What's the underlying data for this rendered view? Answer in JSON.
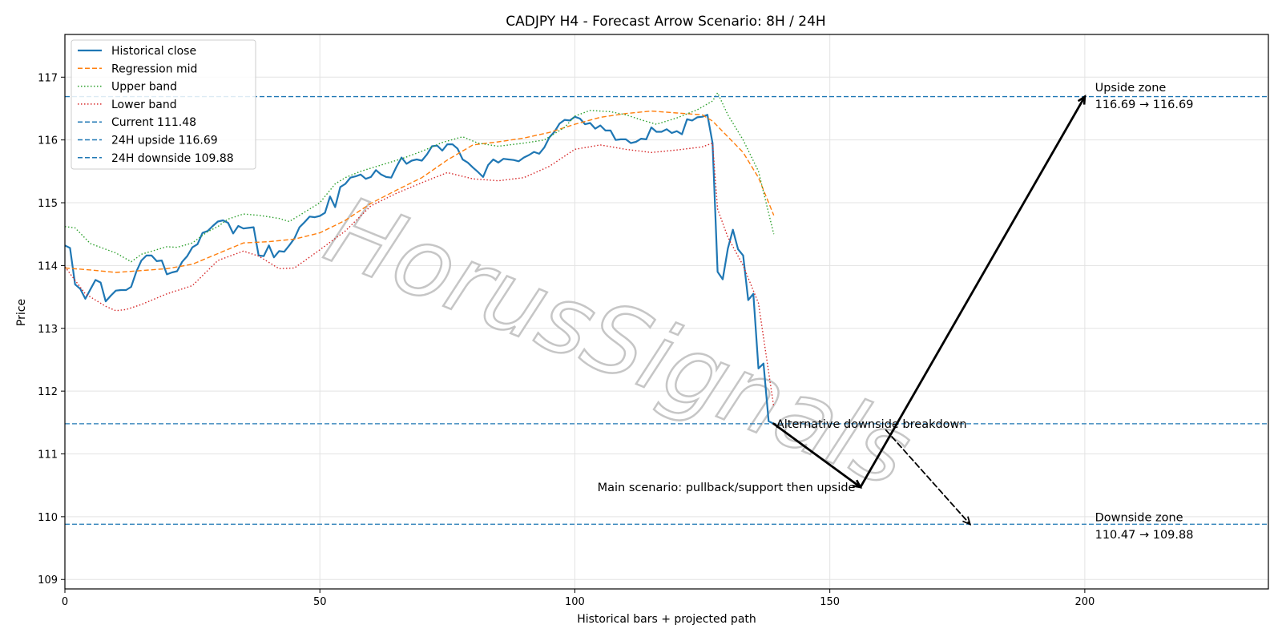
{
  "chart_data": {
    "type": "line",
    "title": "CADJPY H4 - Forecast Arrow Scenario: 8H / 24H",
    "xlabel": "Historical bars + projected path",
    "ylabel": "Price",
    "xlim": [
      0,
      236
    ],
    "ylim": [
      108.85,
      117.68
    ],
    "x_ticks": [
      0,
      50,
      100,
      150,
      200
    ],
    "y_ticks": [
      109,
      110,
      111,
      112,
      113,
      114,
      115,
      116,
      117
    ],
    "grid": true,
    "legend_position": "top-left",
    "watermark": "HorusSignals",
    "series": [
      {
        "name": "Historical close",
        "style": "solid",
        "color": "#1f77b4",
        "x": [
          0,
          1,
          2,
          3,
          4,
          5,
          6,
          7,
          8,
          9,
          10,
          11,
          12,
          13,
          14,
          15,
          16,
          17,
          18,
          19,
          20,
          21,
          22,
          23,
          24,
          25,
          26,
          27,
          28,
          29,
          30,
          31,
          32,
          33,
          34,
          35,
          36,
          37,
          38,
          39,
          40,
          41,
          42,
          43,
          44,
          45,
          46,
          47,
          48,
          49,
          50,
          51,
          52,
          53,
          54,
          55,
          56,
          57,
          58,
          59,
          60,
          61,
          62,
          63,
          64,
          65,
          66,
          67,
          68,
          69,
          70,
          71,
          72,
          73,
          74,
          75,
          76,
          77,
          78,
          79,
          80,
          81,
          82,
          83,
          84,
          85,
          86,
          87,
          88,
          89,
          90,
          91,
          92,
          93,
          94,
          95,
          96,
          97,
          98,
          99,
          100,
          101,
          102,
          103,
          104,
          105,
          106,
          107,
          108,
          109,
          110,
          111,
          112,
          113,
          114,
          115,
          116,
          117,
          118,
          119,
          120,
          121,
          122,
          123,
          124,
          125,
          126,
          127,
          128,
          129,
          130,
          131,
          132,
          133,
          134,
          135,
          136,
          137,
          138,
          139
        ],
        "y": [
          114.32,
          114.28,
          113.7,
          113.63,
          113.47,
          113.62,
          113.77,
          113.73,
          113.43,
          113.52,
          113.6,
          113.61,
          113.61,
          113.66,
          113.9,
          114.08,
          114.16,
          114.16,
          114.07,
          114.08,
          113.86,
          113.89,
          113.91,
          114.06,
          114.15,
          114.29,
          114.34,
          114.52,
          114.55,
          114.63,
          114.7,
          114.72,
          114.68,
          114.51,
          114.63,
          114.59,
          114.6,
          114.61,
          114.16,
          114.15,
          114.32,
          114.13,
          114.23,
          114.22,
          114.32,
          114.43,
          114.61,
          114.69,
          114.78,
          114.77,
          114.79,
          114.84,
          115.1,
          114.93,
          115.25,
          115.3,
          115.4,
          115.42,
          115.45,
          115.38,
          115.41,
          115.52,
          115.45,
          115.41,
          115.4,
          115.57,
          115.72,
          115.62,
          115.67,
          115.69,
          115.67,
          115.77,
          115.9,
          115.91,
          115.83,
          115.93,
          115.93,
          115.86,
          115.69,
          115.64,
          115.56,
          115.49,
          115.41,
          115.6,
          115.69,
          115.64,
          115.7,
          115.69,
          115.68,
          115.66,
          115.72,
          115.76,
          115.81,
          115.78,
          115.88,
          116.04,
          116.13,
          116.26,
          116.32,
          116.31,
          116.37,
          116.34,
          116.25,
          116.27,
          116.18,
          116.23,
          116.15,
          116.15,
          116.0,
          116.01,
          116.01,
          115.95,
          115.97,
          116.02,
          116.01,
          116.2,
          116.13,
          116.13,
          116.17,
          116.11,
          116.14,
          116.09,
          116.33,
          116.31,
          116.36,
          116.37,
          116.4,
          115.95,
          113.9,
          113.78,
          114.27,
          114.57,
          114.26,
          114.16,
          113.45,
          113.55,
          112.36,
          112.44,
          111.52,
          111.48
        ]
      },
      {
        "name": "Regression mid",
        "style": "dashed",
        "color": "#ff7f0e",
        "x": [
          0,
          5,
          10,
          15,
          20,
          25,
          30,
          35,
          40,
          45,
          50,
          55,
          60,
          65,
          70,
          75,
          80,
          85,
          90,
          95,
          100,
          105,
          110,
          115,
          120,
          125,
          127,
          130,
          133,
          136,
          139
        ],
        "y": [
          113.96,
          113.93,
          113.89,
          113.92,
          113.95,
          114.02,
          114.19,
          114.36,
          114.38,
          114.42,
          114.52,
          114.72,
          114.99,
          115.2,
          115.4,
          115.68,
          115.92,
          115.97,
          116.03,
          116.12,
          116.25,
          116.36,
          116.42,
          116.46,
          116.43,
          116.4,
          116.3,
          116.05,
          115.8,
          115.4,
          114.8
        ]
      },
      {
        "name": "Upper band",
        "style": "dotted",
        "color": "#2ca02c",
        "x": [
          0,
          2,
          5,
          10,
          13,
          15,
          20,
          22,
          25,
          28,
          30,
          32,
          35,
          38,
          42,
          44,
          46,
          50,
          53,
          55,
          58,
          62,
          66,
          70,
          74,
          78,
          81,
          85,
          90,
          94,
          98,
          100,
          103,
          107,
          110,
          113,
          116,
          120,
          124,
          127,
          128,
          130,
          133,
          136,
          139
        ],
        "y": [
          114.62,
          114.6,
          114.35,
          114.2,
          114.06,
          114.18,
          114.3,
          114.29,
          114.36,
          114.54,
          114.62,
          114.74,
          114.82,
          114.8,
          114.75,
          114.7,
          114.8,
          115.0,
          115.3,
          115.4,
          115.5,
          115.6,
          115.7,
          115.82,
          115.96,
          116.05,
          115.95,
          115.9,
          115.95,
          116.0,
          116.2,
          116.38,
          116.47,
          116.45,
          116.4,
          116.32,
          116.25,
          116.35,
          116.48,
          116.62,
          116.75,
          116.4,
          116.0,
          115.5,
          114.5
        ]
      },
      {
        "name": "Lower band",
        "style": "dotted",
        "color": "#d62728",
        "x": [
          0,
          4,
          8,
          10,
          12,
          15,
          20,
          25,
          30,
          35,
          38,
          42,
          45,
          50,
          55,
          60,
          65,
          70,
          75,
          80,
          85,
          90,
          95,
          100,
          105,
          110,
          115,
          120,
          125,
          127,
          128,
          130,
          133,
          136,
          139
        ],
        "y": [
          113.98,
          113.55,
          113.35,
          113.28,
          113.3,
          113.38,
          113.55,
          113.68,
          114.08,
          114.23,
          114.15,
          113.95,
          113.96,
          114.25,
          114.55,
          114.95,
          115.15,
          115.32,
          115.48,
          115.38,
          115.35,
          115.4,
          115.58,
          115.85,
          115.92,
          115.85,
          115.8,
          115.84,
          115.89,
          115.95,
          114.9,
          114.45,
          114.0,
          113.4,
          111.75
        ]
      },
      {
        "name": "Current 111.48",
        "style": "dashed",
        "color": "#1f77b4",
        "y": [
          111.48
        ]
      },
      {
        "name": "24H upside 116.69",
        "style": "dashed",
        "color": "#1f77b4",
        "y": [
          116.69
        ]
      },
      {
        "name": "24H downside 109.88",
        "style": "dashed",
        "color": "#1f77b4",
        "y": [
          109.88
        ]
      }
    ],
    "arrows": [
      {
        "role": "main",
        "style": "solid",
        "points": [
          [
            139,
            111.48
          ],
          [
            156,
            110.47
          ],
          [
            200,
            116.69
          ]
        ]
      },
      {
        "role": "alternative",
        "style": "dashed",
        "points": [
          [
            161,
            111.38
          ],
          [
            177.5,
            109.88
          ]
        ]
      }
    ],
    "annotations": [
      {
        "text": "Alternative downside breakdown",
        "x": 139.5,
        "y": 111.48
      },
      {
        "text": "Main scenario: pullback/support then upside",
        "x": 155,
        "y": 110.47,
        "align": "right"
      },
      {
        "text": "Upside zone",
        "x": 202,
        "y": 116.84
      },
      {
        "text": "116.69 → 116.69",
        "x": 202,
        "y": 116.57
      },
      {
        "text": "Downside zone",
        "x": 202,
        "y": 109.99
      },
      {
        "text": "110.47 → 109.88",
        "x": 202,
        "y": 109.72
      }
    ]
  }
}
